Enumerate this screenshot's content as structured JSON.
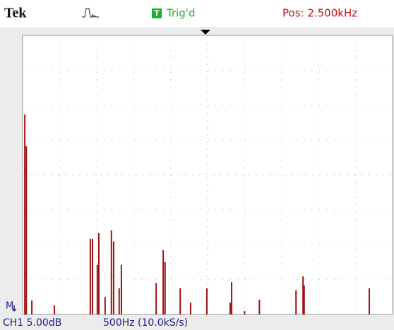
{
  "header": {
    "brand": "Tek",
    "trigger_badge": "T",
    "trigger_status": "Trig'd",
    "position": "Pos: 2.500kHz"
  },
  "footer": {
    "marker": "M",
    "channel": "CH1 5.00dB",
    "timebase": "500Hz (10.0kS/s)"
  },
  "trace": {
    "type": "bar",
    "color": "#a01010",
    "x": [
      30,
      50,
      125,
      430,
      915,
      945,
      1010,
      1030,
      1115,
      1200,
      1230,
      1305,
      1335,
      1805,
      1900,
      1925,
      2130,
      2270,
      2490,
      2805,
      2825,
      3000,
      3200,
      3695,
      3790,
      3805,
      4685
    ],
    "values": [
      5.73,
      4.82,
      0.4,
      0.26,
      2.17,
      2.17,
      1.42,
      2.33,
      0.5,
      2.41,
      2.09,
      0.75,
      1.42,
      0.9,
      1.84,
      1.5,
      0.75,
      0.34,
      0.75,
      0.34,
      0.93,
      0.1,
      0.42,
      0.69,
      1.09,
      0.83,
      0.75
    ],
    "xlim": [
      0,
      5000
    ],
    "ylim": [
      0,
      8
    ]
  }
}
